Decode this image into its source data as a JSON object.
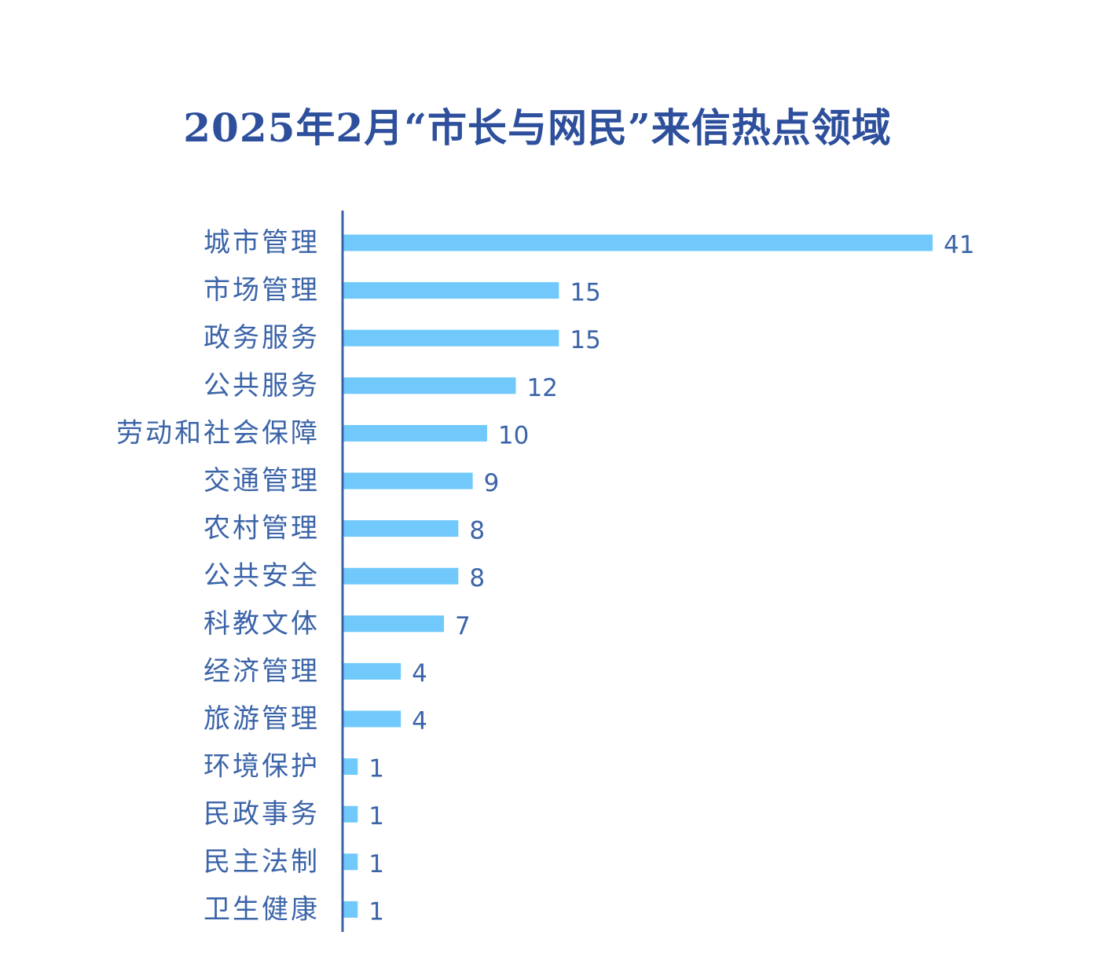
{
  "colors": {
    "title": "#2d4f9c",
    "label": "#3b64a8",
    "bar": "#70c8fb",
    "axis": "#3a62a8"
  },
  "chart_data": {
    "type": "bar",
    "orientation": "horizontal",
    "title": "2025年2月“市长与网民”来信热点领域",
    "xlabel": "",
    "ylabel": "",
    "xlim": [
      0,
      41
    ],
    "grid": false,
    "legend": "none",
    "categories": [
      "城市管理",
      "市场管理",
      "政务服务",
      "公共服务",
      "劳动和社会保障",
      "交通管理",
      "农村管理",
      "公共安全",
      "科教文体",
      "经济管理",
      "旅游管理",
      "环境保护",
      "民政事务",
      "民主法制",
      "卫生健康"
    ],
    "values": [
      41,
      15,
      15,
      12,
      10,
      9,
      8,
      8,
      7,
      4,
      4,
      1,
      1,
      1,
      1
    ]
  }
}
